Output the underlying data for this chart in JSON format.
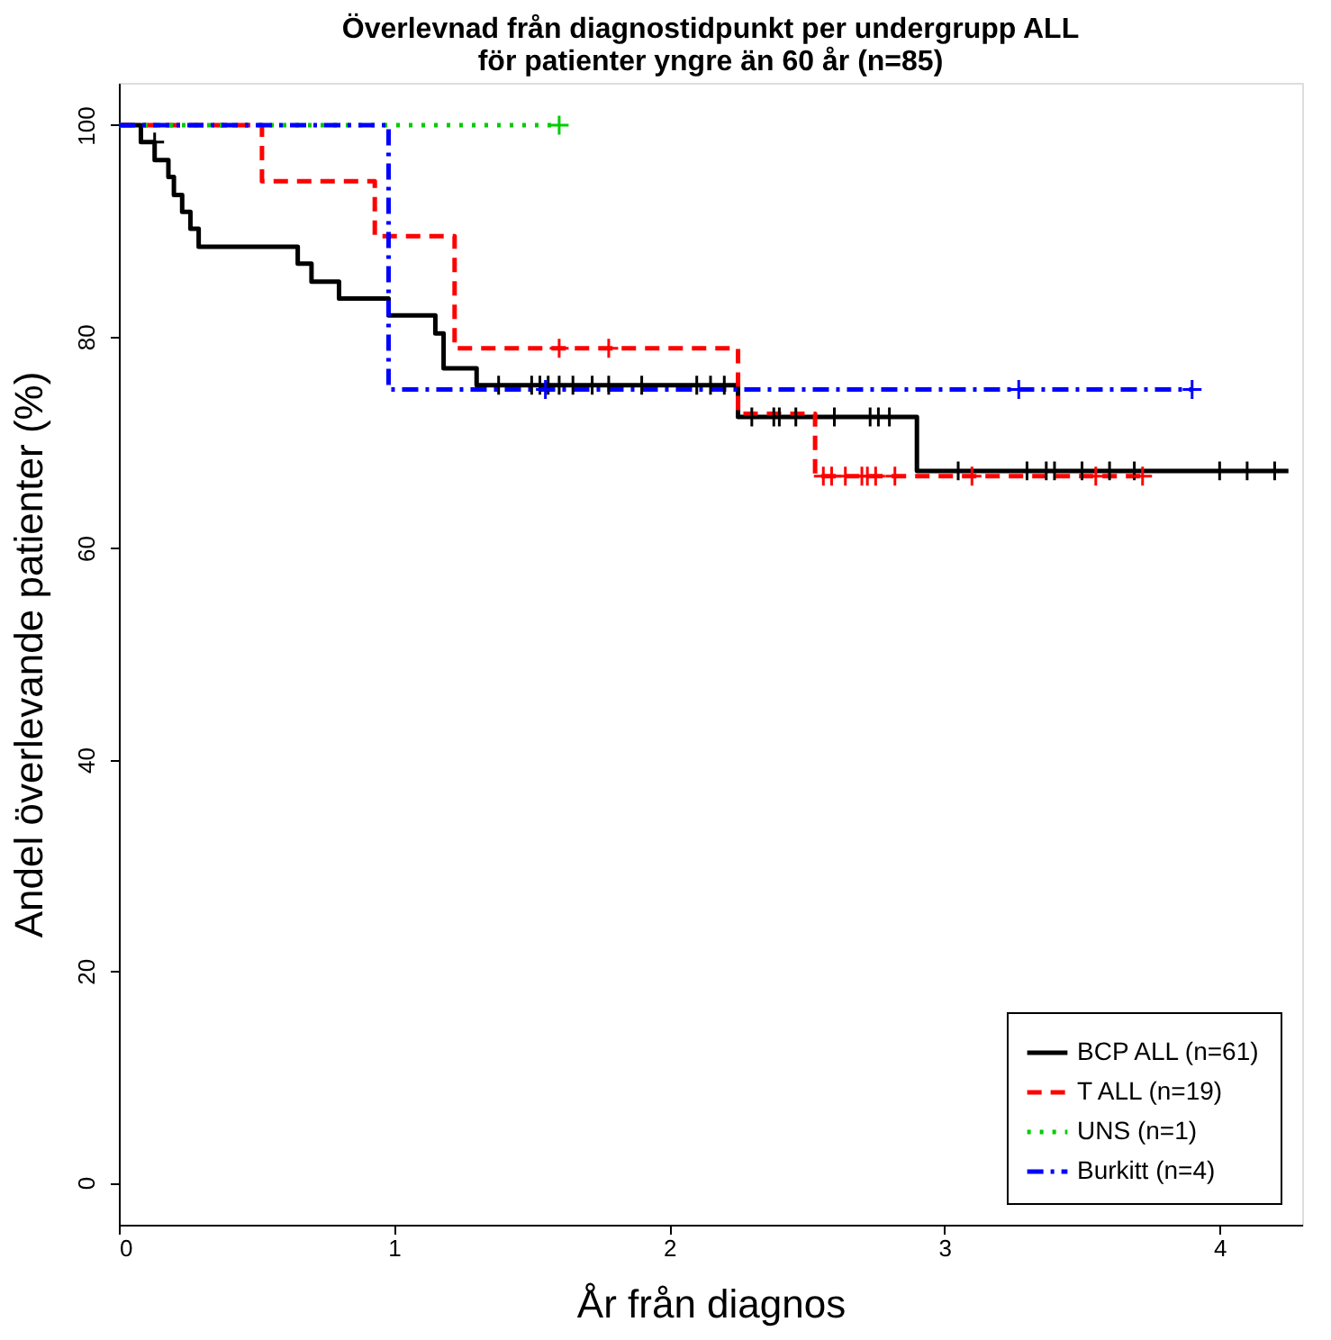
{
  "chart_data": {
    "type": "step",
    "title": "Överlevnad från diagnostidpunkt per undergrupp ALL\nför patienter yngre än 60 år (n=85)",
    "xlabel": "År från diagnos",
    "ylabel": "Andel överlevande patienter (%)",
    "xlim": [
      0,
      4.3
    ],
    "ylim": [
      -4,
      104
    ],
    "xticks": [
      0,
      1,
      2,
      3,
      4
    ],
    "yticks": [
      0,
      20,
      40,
      60,
      80,
      100
    ],
    "grid": false,
    "legend": "bottom right",
    "series": [
      {
        "name": "BCP ALL (n=61)",
        "color": "#000000",
        "line_style": "solid",
        "x": [
          0,
          0.08,
          0.13,
          0.18,
          0.2,
          0.23,
          0.26,
          0.29,
          0.65,
          0.7,
          0.8,
          0.98,
          1.15,
          1.18,
          1.3,
          2.25,
          2.9,
          4.25
        ],
        "values": [
          100,
          98.4,
          96.7,
          95.1,
          93.4,
          91.8,
          90.2,
          88.5,
          86.9,
          85.2,
          83.6,
          82,
          80.3,
          77,
          75.4,
          72.4,
          67.3,
          67.3
        ]
      },
      {
        "name": "T ALL (n=19)",
        "color": "#ff0000",
        "line_style": "dashed",
        "x": [
          0,
          0.52,
          0.93,
          1.22,
          2.25,
          2.53,
          3.72
        ],
        "values": [
          100,
          94.7,
          89.5,
          78.9,
          72.7,
          66.8,
          66.8
        ]
      },
      {
        "name": "UNS (n=1)",
        "color": "#00cc00",
        "line_style": "dotted",
        "x": [
          0,
          1.6
        ],
        "values": [
          100,
          100
        ]
      },
      {
        "name": "Burkitt (n=4)",
        "color": "#0000ff",
        "line_style": "dashdot",
        "x": [
          0,
          0.98,
          3.9
        ],
        "values": [
          100,
          75,
          75
        ]
      },
      {
        "type": "scatter",
        "marker": "cross",
        "color": "#000000",
        "x": [
          0.13,
          1.38,
          1.5,
          1.53,
          1.56,
          1.6,
          1.65,
          1.72,
          1.78,
          1.9,
          2.1,
          2.15,
          2.2,
          2.3,
          2.38,
          2.4,
          2.46,
          2.6,
          2.73,
          2.76,
          2.8,
          3.05,
          3.3,
          3.37,
          3.4,
          3.5,
          3.6,
          3.69,
          4.0,
          4.1,
          4.2
        ],
        "values": [
          98.4,
          75.4,
          75.4,
          75.4,
          75.4,
          75.4,
          75.4,
          75.4,
          75.4,
          75.4,
          75.4,
          75.4,
          75.4,
          72.4,
          72.4,
          72.4,
          72.4,
          72.4,
          72.4,
          72.4,
          72.4,
          67.3,
          67.3,
          67.3,
          67.3,
          67.3,
          67.3,
          67.3,
          67.3,
          67.3,
          67.3
        ]
      },
      {
        "type": "scatter",
        "marker": "cross",
        "color": "#ff0000",
        "x": [
          1.6,
          1.78,
          2.56,
          2.59,
          2.64,
          2.7,
          2.72,
          2.75,
          2.82,
          3.1,
          3.55,
          3.72
        ],
        "values": [
          78.9,
          78.9,
          66.8,
          66.8,
          66.8,
          66.8,
          66.8,
          66.8,
          66.8,
          66.8,
          66.8,
          66.8
        ]
      },
      {
        "type": "scatter",
        "marker": "cross",
        "color": "#00cc00",
        "x": [
          1.6
        ],
        "values": [
          100
        ]
      },
      {
        "type": "scatter",
        "marker": "cross",
        "color": "#0000ff",
        "x": [
          1.55,
          3.27,
          3.9
        ],
        "values": [
          75,
          75,
          75
        ]
      }
    ]
  }
}
